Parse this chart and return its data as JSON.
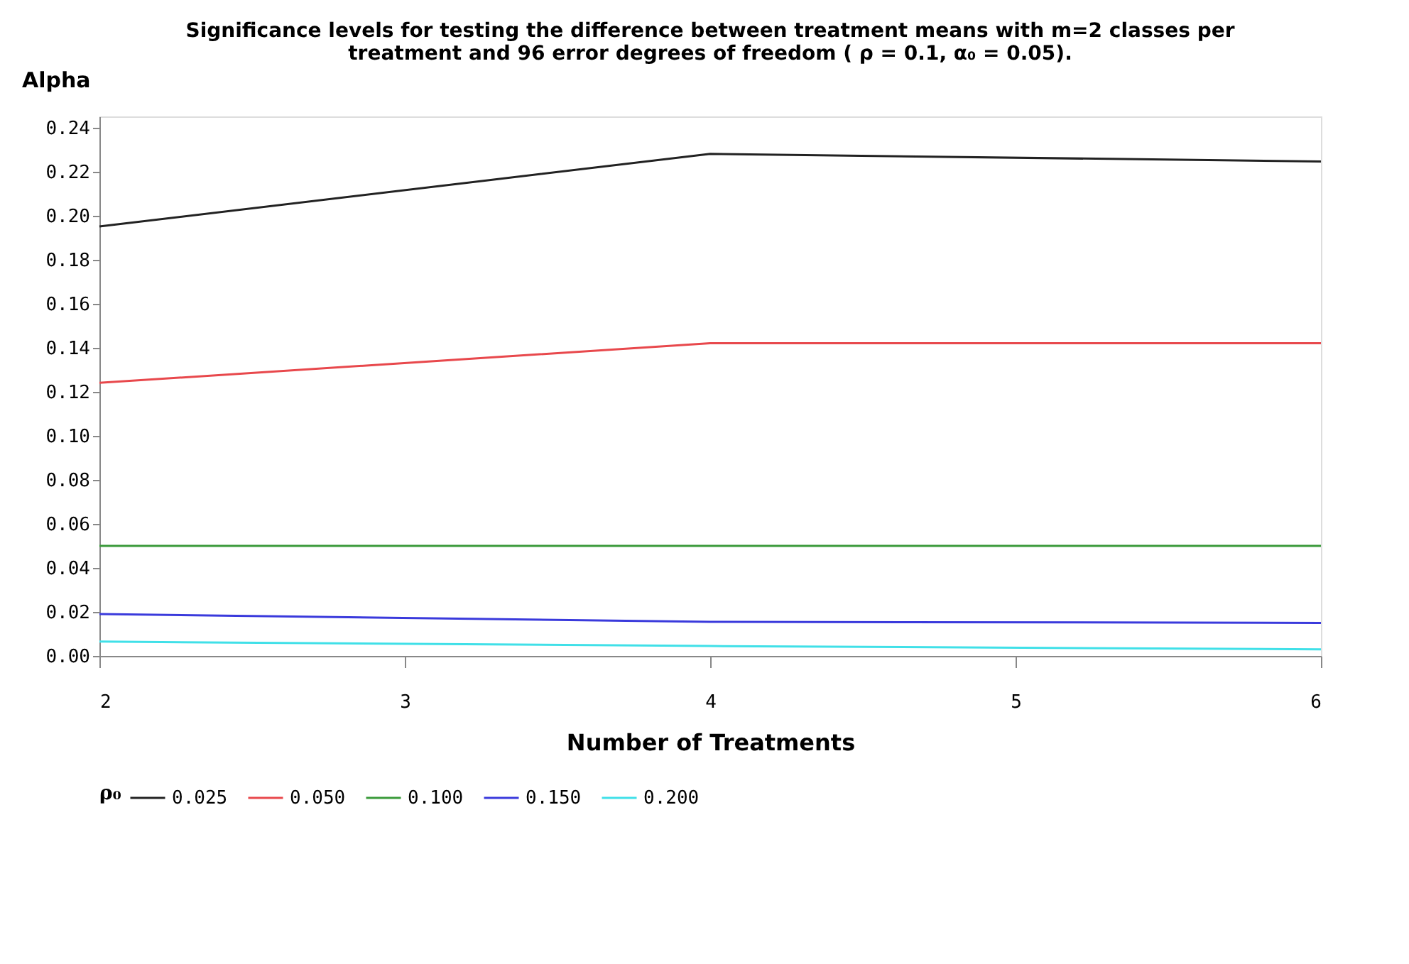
{
  "chart_data": {
    "type": "line",
    "title": [
      "Significance levels for testing the difference between treatment means with m=2 classes per",
      "treatment and 96 error degrees of freedom ( ρ = 0.1, α₀ = 0.05)."
    ],
    "xlabel": "Number of Treatments",
    "ylabel": "Alpha",
    "legend_title": "ρ₀",
    "x": [
      2,
      4,
      6
    ],
    "series": [
      {
        "name": "0.025",
        "color": "#222222",
        "values": [
          0.195,
          0.228,
          0.2245
        ]
      },
      {
        "name": "0.050",
        "color": "#e8484c",
        "values": [
          0.124,
          0.142,
          0.142
        ]
      },
      {
        "name": "0.100",
        "color": "#3a9a3a",
        "values": [
          0.05,
          0.05,
          0.05
        ]
      },
      {
        "name": "0.150",
        "color": "#3a3adc",
        "values": [
          0.019,
          0.0155,
          0.015
        ]
      },
      {
        "name": "0.200",
        "color": "#40e0e8",
        "values": [
          0.0065,
          0.0045,
          0.003
        ]
      }
    ],
    "xlim": [
      2,
      6
    ],
    "xticks": [
      2,
      3,
      4,
      5,
      6
    ],
    "ylim": [
      0,
      0.245
    ],
    "yticks": [
      {
        "value": 0,
        "label": "0.00"
      },
      {
        "value": 0.02,
        "label": "0.02"
      },
      {
        "value": 0.04,
        "label": "0.04"
      },
      {
        "value": 0.06,
        "label": "0.06"
      },
      {
        "value": 0.08,
        "label": "0.08"
      },
      {
        "value": 0.1,
        "label": "0.10"
      },
      {
        "value": 0.12,
        "label": "0.12"
      },
      {
        "value": 0.14,
        "label": "0.14"
      },
      {
        "value": 0.16,
        "label": "0.16"
      },
      {
        "value": 0.18,
        "label": "0.18"
      },
      {
        "value": 0.2,
        "label": "0.20"
      },
      {
        "value": 0.22,
        "label": "0.22"
      },
      {
        "value": 0.24,
        "label": "0.24"
      }
    ],
    "grid": false,
    "legend": "bottom",
    "marker": "none",
    "line_style": "solid"
  }
}
